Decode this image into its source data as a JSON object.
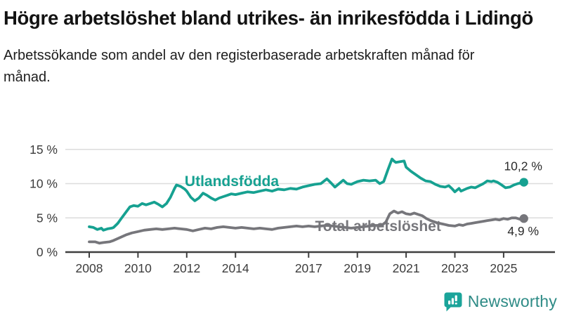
{
  "header": {
    "title": "Högre arbetslöshet bland utrikes- än inrikesfödda i Lidingö",
    "subtitle": "Arbetssökande som andel av den registerbaserade arbetskraften månad för månad."
  },
  "colors": {
    "teal_series": "#16a191",
    "gray_series": "#76767b",
    "grid": "#dcdcdc",
    "axis": "#3f3f3f",
    "tick_text": "#3c3c3c",
    "end_label_text": "#2b2b2b",
    "brand_icon": "#1ba49a",
    "brand_text": "#2e8b86"
  },
  "chart_data": {
    "type": "line",
    "title": "Högre arbetslöshet bland utrikes- än inrikesfödda i Lidingö",
    "subtitle": "Arbetssökande som andel av den registerbaserade arbetskraften månad för månad.",
    "unit": "%",
    "grid": "horizontal",
    "legend_position": "inline-labels",
    "ylim": [
      0,
      15.8
    ],
    "xlim": [
      2007.9,
      2026.1
    ],
    "yticks": [
      0,
      5,
      10,
      15
    ],
    "ytick_labels": [
      "0 %",
      "5 %",
      "10 %",
      "15 %"
    ],
    "xticks": [
      2008,
      2010,
      2012,
      2014,
      2017,
      2019,
      2021,
      2023,
      2025
    ],
    "xtick_labels": [
      "2008",
      "2010",
      "2012",
      "2014",
      "2017",
      "2019",
      "2021",
      "2023",
      "2025"
    ],
    "series": [
      {
        "name": "Utlandsfödda",
        "color": "#16a191",
        "end_label": "10,2 %",
        "end_value": 10.2,
        "end_label_dy": -17,
        "label_pos": [
          2013.85,
          10.35
        ],
        "points": [
          [
            2008.0,
            3.7
          ],
          [
            2008.17,
            3.6
          ],
          [
            2008.33,
            3.3
          ],
          [
            2008.5,
            3.5
          ],
          [
            2008.58,
            3.2
          ],
          [
            2008.75,
            3.4
          ],
          [
            2008.92,
            3.5
          ],
          [
            2009.0,
            3.6
          ],
          [
            2009.17,
            4.2
          ],
          [
            2009.33,
            5.0
          ],
          [
            2009.5,
            5.8
          ],
          [
            2009.67,
            6.6
          ],
          [
            2009.83,
            6.8
          ],
          [
            2010.0,
            6.7
          ],
          [
            2010.17,
            7.1
          ],
          [
            2010.33,
            6.9
          ],
          [
            2010.5,
            7.1
          ],
          [
            2010.67,
            7.3
          ],
          [
            2010.83,
            7.0
          ],
          [
            2011.0,
            6.6
          ],
          [
            2011.17,
            7.1
          ],
          [
            2011.33,
            8.0
          ],
          [
            2011.5,
            9.3
          ],
          [
            2011.58,
            9.8
          ],
          [
            2011.75,
            9.6
          ],
          [
            2011.92,
            9.2
          ],
          [
            2012.0,
            8.9
          ],
          [
            2012.17,
            8.0
          ],
          [
            2012.33,
            7.5
          ],
          [
            2012.5,
            7.9
          ],
          [
            2012.67,
            8.6
          ],
          [
            2012.83,
            8.3
          ],
          [
            2013.0,
            7.9
          ],
          [
            2013.17,
            7.6
          ],
          [
            2013.33,
            7.9
          ],
          [
            2013.5,
            8.1
          ],
          [
            2013.67,
            8.3
          ],
          [
            2013.83,
            8.5
          ],
          [
            2014.0,
            8.4
          ],
          [
            2014.25,
            8.6
          ],
          [
            2014.5,
            8.8
          ],
          [
            2014.75,
            8.7
          ],
          [
            2015.0,
            8.9
          ],
          [
            2015.25,
            9.1
          ],
          [
            2015.5,
            8.9
          ],
          [
            2015.75,
            9.2
          ],
          [
            2016.0,
            9.1
          ],
          [
            2016.25,
            9.3
          ],
          [
            2016.5,
            9.2
          ],
          [
            2016.75,
            9.5
          ],
          [
            2017.0,
            9.7
          ],
          [
            2017.25,
            9.9
          ],
          [
            2017.5,
            10.0
          ],
          [
            2017.75,
            10.7
          ],
          [
            2017.92,
            10.1
          ],
          [
            2018.08,
            9.5
          ],
          [
            2018.25,
            10.0
          ],
          [
            2018.42,
            10.5
          ],
          [
            2018.58,
            10.0
          ],
          [
            2018.75,
            9.9
          ],
          [
            2019.0,
            10.3
          ],
          [
            2019.25,
            10.5
          ],
          [
            2019.5,
            10.4
          ],
          [
            2019.75,
            10.5
          ],
          [
            2019.92,
            10.0
          ],
          [
            2020.08,
            10.3
          ],
          [
            2020.25,
            12.0
          ],
          [
            2020.42,
            13.6
          ],
          [
            2020.5,
            13.3
          ],
          [
            2020.58,
            13.1
          ],
          [
            2020.75,
            13.2
          ],
          [
            2020.92,
            13.3
          ],
          [
            2021.0,
            12.4
          ],
          [
            2021.2,
            11.8
          ],
          [
            2021.4,
            11.3
          ],
          [
            2021.6,
            10.8
          ],
          [
            2021.8,
            10.4
          ],
          [
            2022.0,
            10.3
          ],
          [
            2022.2,
            9.9
          ],
          [
            2022.4,
            9.6
          ],
          [
            2022.6,
            9.5
          ],
          [
            2022.75,
            9.7
          ],
          [
            2022.9,
            9.2
          ],
          [
            2023.0,
            8.8
          ],
          [
            2023.17,
            9.3
          ],
          [
            2023.25,
            8.9
          ],
          [
            2023.5,
            9.3
          ],
          [
            2023.67,
            9.5
          ],
          [
            2023.83,
            9.4
          ],
          [
            2024.0,
            9.7
          ],
          [
            2024.17,
            10.0
          ],
          [
            2024.33,
            10.4
          ],
          [
            2024.5,
            10.3
          ],
          [
            2024.58,
            10.4
          ],
          [
            2024.75,
            10.2
          ],
          [
            2024.92,
            9.8
          ],
          [
            2025.08,
            9.4
          ],
          [
            2025.25,
            9.5
          ],
          [
            2025.42,
            9.8
          ],
          [
            2025.58,
            10.0
          ],
          [
            2025.83,
            10.2
          ]
        ]
      },
      {
        "name": "Total arbetslöshet",
        "color": "#76767b",
        "end_label": "4,9 %",
        "end_value": 4.9,
        "end_label_dy": 24,
        "label_pos": [
          2019.85,
          3.8
        ],
        "points": [
          [
            2008.0,
            1.5
          ],
          [
            2008.25,
            1.5
          ],
          [
            2008.42,
            1.3
          ],
          [
            2008.58,
            1.4
          ],
          [
            2008.83,
            1.5
          ],
          [
            2009.0,
            1.7
          ],
          [
            2009.25,
            2.1
          ],
          [
            2009.5,
            2.5
          ],
          [
            2009.75,
            2.8
          ],
          [
            2010.0,
            3.0
          ],
          [
            2010.25,
            3.2
          ],
          [
            2010.5,
            3.3
          ],
          [
            2010.75,
            3.4
          ],
          [
            2011.0,
            3.3
          ],
          [
            2011.25,
            3.4
          ],
          [
            2011.5,
            3.5
          ],
          [
            2011.75,
            3.4
          ],
          [
            2012.0,
            3.3
          ],
          [
            2012.25,
            3.1
          ],
          [
            2012.5,
            3.3
          ],
          [
            2012.75,
            3.5
          ],
          [
            2013.0,
            3.4
          ],
          [
            2013.25,
            3.6
          ],
          [
            2013.5,
            3.7
          ],
          [
            2013.75,
            3.6
          ],
          [
            2014.0,
            3.5
          ],
          [
            2014.25,
            3.6
          ],
          [
            2014.5,
            3.5
          ],
          [
            2014.75,
            3.4
          ],
          [
            2015.0,
            3.5
          ],
          [
            2015.25,
            3.4
          ],
          [
            2015.5,
            3.3
          ],
          [
            2015.75,
            3.5
          ],
          [
            2016.0,
            3.6
          ],
          [
            2016.25,
            3.7
          ],
          [
            2016.5,
            3.8
          ],
          [
            2016.75,
            3.7
          ],
          [
            2017.0,
            3.8
          ],
          [
            2017.25,
            3.7
          ],
          [
            2017.5,
            3.8
          ],
          [
            2017.75,
            3.9
          ],
          [
            2018.0,
            3.8
          ],
          [
            2018.25,
            3.7
          ],
          [
            2018.5,
            3.6
          ],
          [
            2018.75,
            3.5
          ],
          [
            2019.0,
            3.6
          ],
          [
            2019.25,
            3.7
          ],
          [
            2019.5,
            3.8
          ],
          [
            2019.75,
            3.9
          ],
          [
            2020.0,
            3.9
          ],
          [
            2020.17,
            4.4
          ],
          [
            2020.33,
            5.6
          ],
          [
            2020.5,
            6.0
          ],
          [
            2020.67,
            5.7
          ],
          [
            2020.83,
            5.9
          ],
          [
            2021.0,
            5.6
          ],
          [
            2021.17,
            5.5
          ],
          [
            2021.33,
            5.7
          ],
          [
            2021.5,
            5.5
          ],
          [
            2021.67,
            5.3
          ],
          [
            2021.83,
            4.9
          ],
          [
            2022.0,
            4.6
          ],
          [
            2022.25,
            4.3
          ],
          [
            2022.5,
            4.1
          ],
          [
            2022.75,
            3.9
          ],
          [
            2023.0,
            3.8
          ],
          [
            2023.17,
            4.0
          ],
          [
            2023.33,
            3.9
          ],
          [
            2023.5,
            4.1
          ],
          [
            2023.67,
            4.2
          ],
          [
            2023.83,
            4.3
          ],
          [
            2024.0,
            4.4
          ],
          [
            2024.17,
            4.5
          ],
          [
            2024.33,
            4.6
          ],
          [
            2024.5,
            4.7
          ],
          [
            2024.67,
            4.8
          ],
          [
            2024.83,
            4.7
          ],
          [
            2025.0,
            4.9
          ],
          [
            2025.17,
            4.8
          ],
          [
            2025.33,
            5.0
          ],
          [
            2025.5,
            5.0
          ],
          [
            2025.67,
            4.8
          ],
          [
            2025.83,
            4.9
          ]
        ]
      }
    ]
  },
  "footer": {
    "brand": "Newsworthy"
  }
}
